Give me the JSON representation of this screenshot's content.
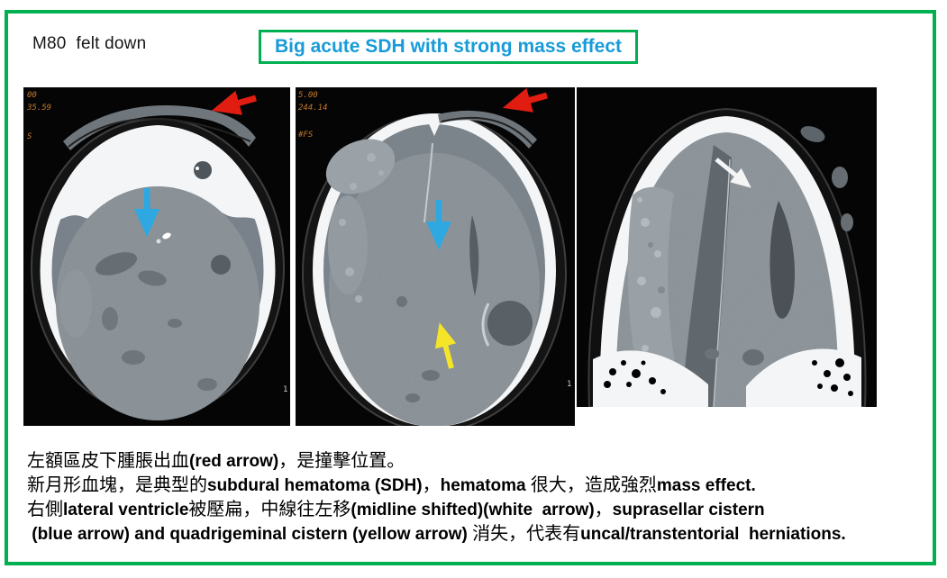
{
  "slide": {
    "case_label": "M80  felt down",
    "title": "Big acute SDH with strong mass effect",
    "accent_green": "#00b050",
    "title_blue": "#189bd8",
    "overlay_orange": "#c5792d"
  },
  "scans": [
    {
      "label": "axial CT, skull base level",
      "overlay": [
        "00",
        "35.59",
        "S"
      ],
      "slice_number": "1",
      "arrows": [
        {
          "name": "red-arrow",
          "color": "#e11d12"
        },
        {
          "name": "blue-arrow",
          "color": "#2fa8e1"
        }
      ]
    },
    {
      "label": "axial CT, lateral ventricle level",
      "overlay": [
        "5.00",
        "244.14",
        "#FS"
      ],
      "slice_number": "1",
      "arrows": [
        {
          "name": "red-arrow",
          "color": "#e11d12"
        },
        {
          "name": "blue-arrow",
          "color": "#2fa8e1"
        },
        {
          "name": "yellow-arrow",
          "color": "#f5e427"
        }
      ]
    },
    {
      "label": "coronal CT",
      "overlay": [],
      "slice_number": "",
      "arrows": [
        {
          "name": "white-arrow",
          "color": "#f5f5f5"
        }
      ]
    }
  ],
  "notes": {
    "lines": [
      {
        "segments": [
          {
            "text": "左額區皮下腫脹出血",
            "bold": false
          },
          {
            "text": "(red arrow)",
            "bold": true
          },
          {
            "text": "，是撞擊位置。",
            "bold": false
          }
        ]
      },
      {
        "segments": [
          {
            "text": "新月形血塊，是典型的",
            "bold": false
          },
          {
            "text": "subdural hematoma (SDH)",
            "bold": true
          },
          {
            "text": "，",
            "bold": false
          },
          {
            "text": "hematoma ",
            "bold": true
          },
          {
            "text": "很大，造成強烈",
            "bold": false
          },
          {
            "text": "mass effect.",
            "bold": true
          }
        ]
      },
      {
        "segments": [
          {
            "text": "右側",
            "bold": false
          },
          {
            "text": "lateral ventricle",
            "bold": true
          },
          {
            "text": "被壓扁，中線往左移",
            "bold": false
          },
          {
            "text": "(midline shifted)(white  arrow)",
            "bold": true
          },
          {
            "text": "，",
            "bold": false
          },
          {
            "text": "suprasellar cistern",
            "bold": true
          }
        ]
      },
      {
        "segments": [
          {
            "text": " (blue arrow) and quadrigeminal cistern (yellow arrow) ",
            "bold": true
          },
          {
            "text": "消失，代表有",
            "bold": false
          },
          {
            "text": "uncal/transtentorial  herniations.",
            "bold": true
          }
        ]
      }
    ]
  }
}
